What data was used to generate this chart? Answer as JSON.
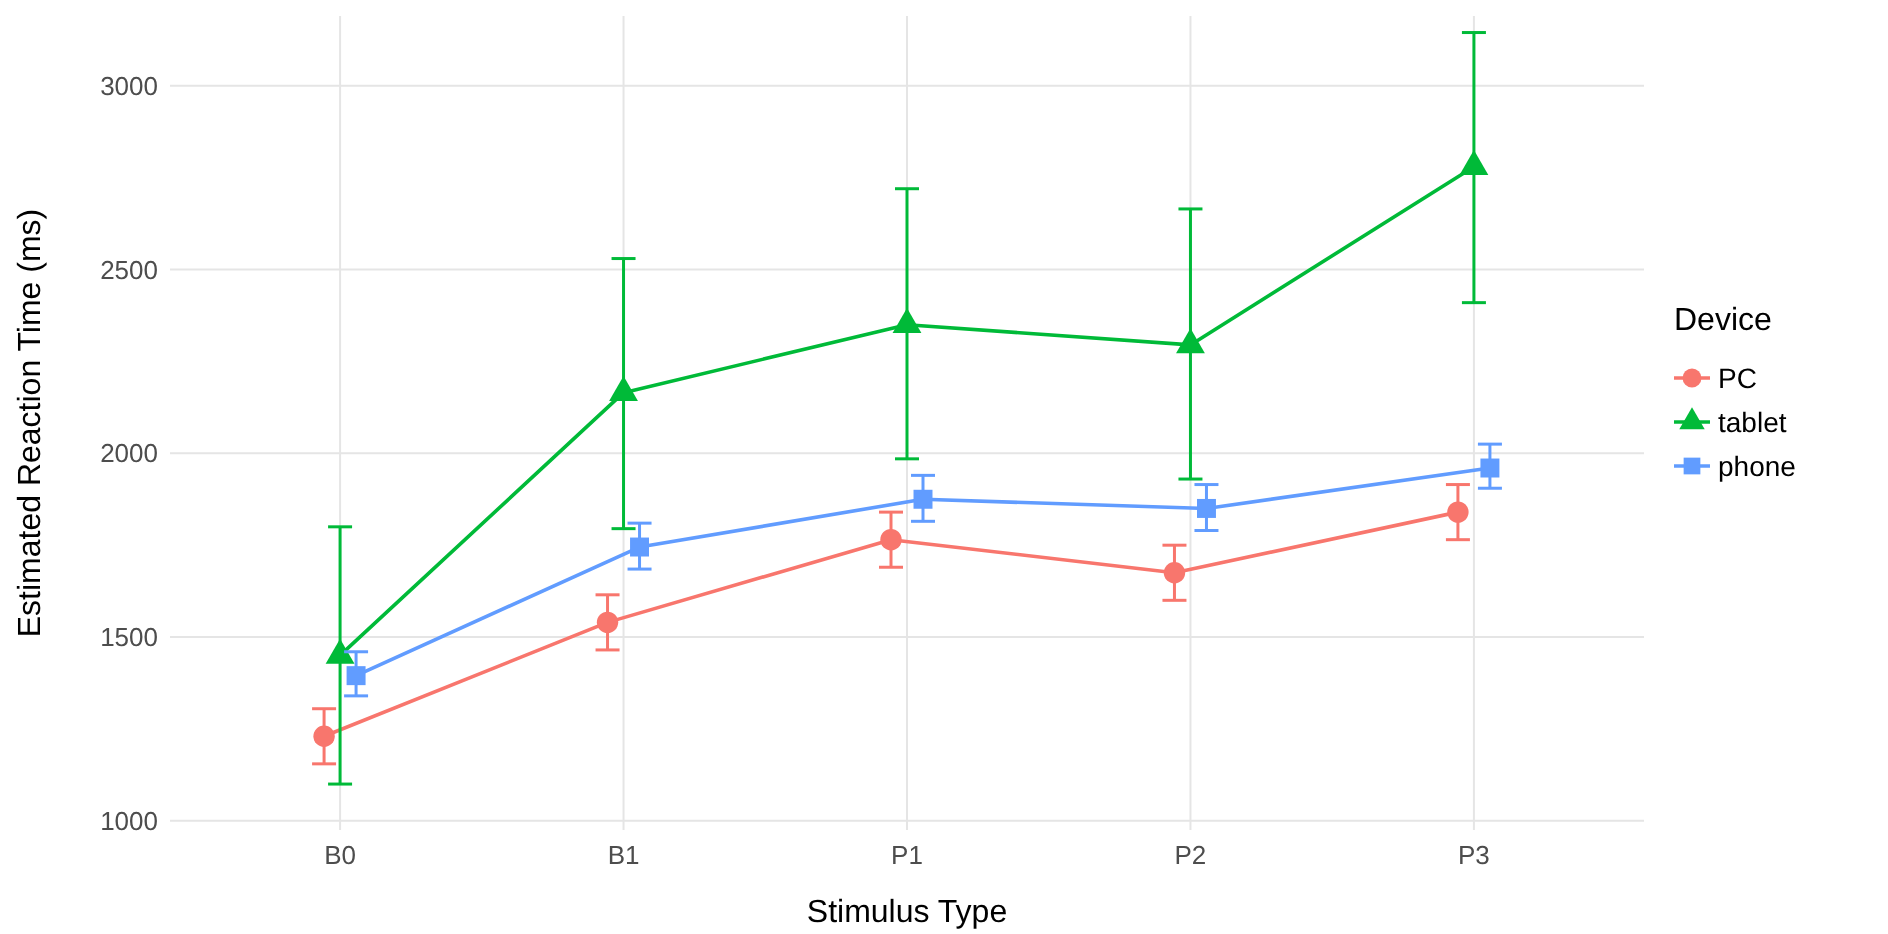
{
  "chart_data": {
    "type": "line",
    "xlabel": "Stimulus Type",
    "ylabel": "Estimated Reaction Time (ms)",
    "legend_title": "Device",
    "legend": "right",
    "grid": true,
    "categories": [
      "B0",
      "B1",
      "P1",
      "P2",
      "P3"
    ],
    "ylim": [
      975,
      3190
    ],
    "yticks": [
      1000,
      1500,
      2000,
      2500,
      3000
    ],
    "series": [
      {
        "name": "PC",
        "color": "#f8766d",
        "marker": "circle",
        "values": [
          1230,
          1540,
          1765,
          1675,
          1840
        ],
        "errors": [
          75,
          75,
          75,
          75,
          75
        ]
      },
      {
        "name": "tablet",
        "color": "#00ba38",
        "marker": "triangle",
        "values": [
          1450,
          2165,
          2350,
          2295,
          2780
        ],
        "errors": [
          [
            1100,
            1800
          ],
          [
            1795,
            2530
          ],
          [
            1985,
            2720
          ],
          [
            1930,
            2665
          ],
          [
            2410,
            3145
          ]
        ]
      },
      {
        "name": "phone",
        "color": "#619cff",
        "marker": "square",
        "values": [
          1395,
          1745,
          1875,
          1850,
          1960
        ],
        "errors": [
          [
            1340,
            1460
          ],
          [
            1685,
            1810
          ],
          [
            1815,
            1940
          ],
          [
            1790,
            1915
          ],
          [
            1905,
            2025
          ]
        ]
      }
    ]
  }
}
